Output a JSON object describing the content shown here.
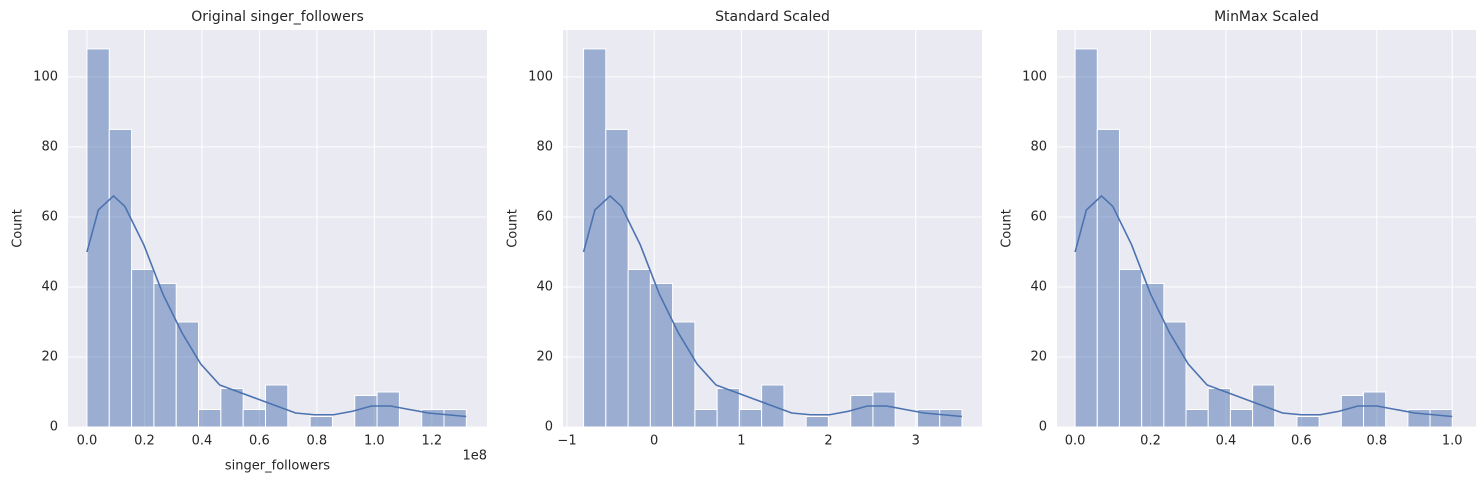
{
  "chart_data": [
    {
      "type": "histogram",
      "title": "Original singer_followers",
      "xlabel": "singer_followers",
      "ylabel": "Count",
      "x_offset_text": "1e8",
      "color": "#4c72b0",
      "grid": true,
      "bins": [
        0,
        7765000,
        15530000,
        23295000,
        31060000,
        38825000,
        46590000,
        54355000,
        62120000,
        69885000,
        77650000,
        85415000,
        93180000,
        100945000,
        108710000,
        116475000,
        124240000,
        132005000
      ],
      "values": [
        108,
        85,
        45,
        41,
        30,
        5,
        11,
        5,
        12,
        0,
        3,
        0,
        9,
        10,
        0,
        5,
        5
      ],
      "kde": {
        "x": [
          0,
          3960000,
          9240000,
          13200000,
          19800000,
          26400000,
          33000000,
          39600000,
          46200000,
          52800000,
          59400000,
          66000000,
          72600000,
          79200000,
          85800000,
          92400000,
          99000000,
          105600000,
          112200000,
          118800000,
          125400000,
          132000000
        ],
        "values": [
          50,
          62,
          66,
          63,
          52,
          38,
          27,
          18,
          12,
          10,
          8,
          6,
          4,
          3.5,
          3.5,
          4.5,
          6,
          6,
          5,
          4,
          3.5,
          3
        ]
      },
      "xlim": [
        -6600000,
        139200000
      ],
      "ylim": [
        0,
        113.4
      ],
      "xticks": [
        {
          "value": 0,
          "label": "0.0"
        },
        {
          "value": 20000000,
          "label": "0.2"
        },
        {
          "value": 40000000,
          "label": "0.4"
        },
        {
          "value": 60000000,
          "label": "0.6"
        },
        {
          "value": 80000000,
          "label": "0.8"
        },
        {
          "value": 100000000,
          "label": "1.0"
        },
        {
          "value": 120000000,
          "label": "1.2"
        }
      ],
      "yticks": [
        0,
        20,
        40,
        60,
        80,
        100
      ]
    },
    {
      "type": "histogram",
      "title": "Standard Scaled",
      "ylabel": "Count",
      "color": "#4c72b0",
      "grid": true,
      "bins": [
        -0.81,
        -0.555,
        -0.299,
        -0.044,
        0.211,
        0.467,
        0.722,
        0.977,
        1.232,
        1.488,
        1.743,
        1.998,
        2.254,
        2.509,
        2.764,
        3.019,
        3.275,
        3.53
      ],
      "values": [
        108,
        85,
        45,
        41,
        30,
        5,
        11,
        5,
        12,
        0,
        3,
        0,
        9,
        10,
        0,
        5,
        5
      ],
      "kde": {
        "x": [
          -0.81,
          -0.68,
          -0.506,
          -0.376,
          -0.159,
          0.058,
          0.275,
          0.492,
          0.709,
          0.926,
          1.143,
          1.36,
          1.577,
          1.794,
          2.011,
          2.228,
          2.445,
          2.662,
          2.879,
          3.096,
          3.313,
          3.53
        ],
        "values": [
          50,
          62,
          66,
          63,
          52,
          38,
          27,
          18,
          12,
          10,
          8,
          6,
          4,
          3.5,
          3.5,
          4.5,
          6,
          6,
          5,
          4,
          3.5,
          3
        ]
      },
      "xlim": [
        -1.046,
        3.76
      ],
      "ylim": [
        0,
        113.4
      ],
      "xticks": [
        {
          "value": -1,
          "label": "−1"
        },
        0,
        1,
        2,
        3
      ],
      "yticks": [
        0,
        20,
        40,
        60,
        80,
        100
      ]
    },
    {
      "type": "histogram",
      "title": "MinMax Scaled",
      "ylabel": "Count",
      "color": "#4c72b0",
      "grid": true,
      "bins": [
        0,
        0.0588,
        0.1176,
        0.1765,
        0.2353,
        0.2941,
        0.3529,
        0.4118,
        0.4706,
        0.5294,
        0.5882,
        0.6471,
        0.7059,
        0.7647,
        0.8235,
        0.8824,
        0.9412,
        1
      ],
      "values": [
        108,
        85,
        45,
        41,
        30,
        5,
        11,
        5,
        12,
        0,
        3,
        0,
        9,
        10,
        0,
        5,
        5
      ],
      "kde": {
        "x": [
          0,
          0.03,
          0.07,
          0.1,
          0.15,
          0.2,
          0.25,
          0.3,
          0.35,
          0.4,
          0.45,
          0.5,
          0.55,
          0.6,
          0.65,
          0.7,
          0.75,
          0.8,
          0.85,
          0.9,
          0.95,
          1
        ],
        "values": [
          50,
          62,
          66,
          63,
          52,
          38,
          27,
          18,
          12,
          10,
          8,
          6,
          4,
          3.5,
          3.5,
          4.5,
          6,
          6,
          5,
          4,
          3.5,
          3
        ]
      },
      "xlim": [
        -0.048,
        1.063
      ],
      "ylim": [
        0,
        113.4
      ],
      "xticks": [
        {
          "value": 0,
          "label": "0.0"
        },
        {
          "value": 0.2,
          "label": "0.2"
        },
        {
          "value": 0.4,
          "label": "0.4"
        },
        {
          "value": 0.6,
          "label": "0.6"
        },
        {
          "value": 0.8,
          "label": "0.8"
        },
        {
          "value": 1,
          "label": "1.0"
        }
      ],
      "yticks": [
        0,
        20,
        40,
        60,
        80,
        100
      ]
    }
  ]
}
